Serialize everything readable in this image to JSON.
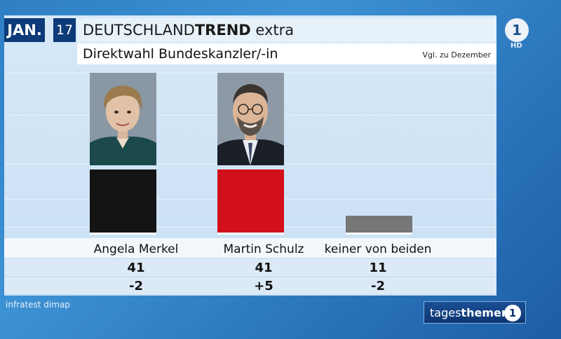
{
  "header": {
    "month": "JAN.",
    "year": "17",
    "title_main": "DEUTSCHLAND",
    "title_bold": "TREND",
    "title_suffix": " extra",
    "subtitle": "Direktwahl Bundeskanzler/-in",
    "comparison_note": "Vgl. zu Dezember"
  },
  "chart_data": {
    "type": "bar",
    "title": "Direktwahl Bundeskanzler/-in",
    "categories": [
      "Angela Merkel",
      "Martin Schulz",
      "keiner von beiden"
    ],
    "values": [
      41,
      41,
      11
    ],
    "changes": [
      "-2",
      "+5",
      "-2"
    ],
    "colors": [
      "#141414",
      "#d1101c",
      "#777777"
    ],
    "ylim": [
      0,
      41
    ]
  },
  "footer": {
    "source": "infratest dimap",
    "program_light": "tages",
    "program_bold": "themen",
    "channel_mark": "1",
    "quality": "HD"
  }
}
